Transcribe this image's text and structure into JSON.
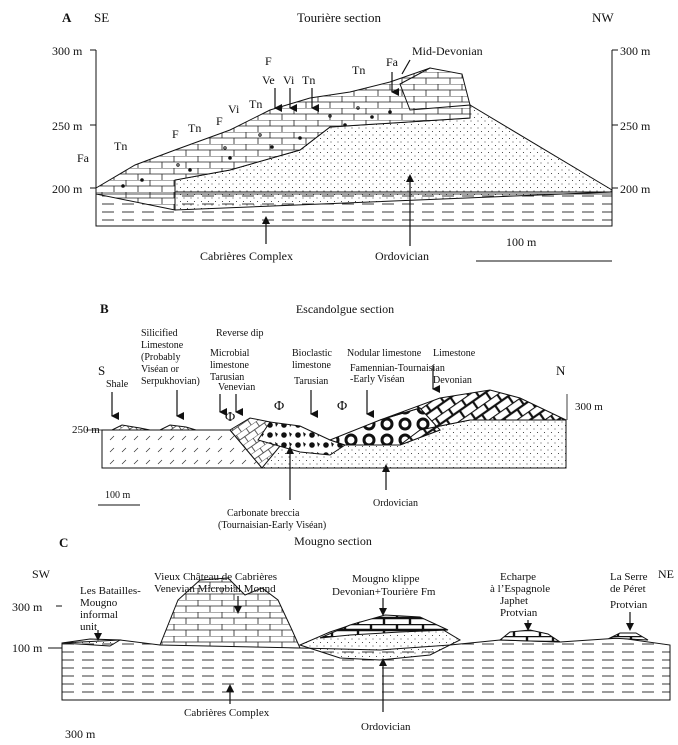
{
  "panelA": {
    "letter": "A",
    "title": "Tourière section",
    "left_dir": "SE",
    "right_dir": "NW",
    "elev_left": [
      "300 m",
      "250 m",
      "200 m"
    ],
    "elev_right": [
      "300 m",
      "250 m",
      "200 m"
    ],
    "unit_labels": [
      "Fa",
      "Tn",
      "F",
      "Tn",
      "F",
      "Vi",
      "F",
      "Ve",
      "Vi",
      "Tn",
      "Tn",
      "Tn",
      "Fa"
    ],
    "mid_devonian": "Mid-Devonian",
    "cabrieres": "Cabrières Complex",
    "ordovician": "Ordovician",
    "scale": "100 m"
  },
  "panelB": {
    "letter": "B",
    "title": "Escandolgue section",
    "left_dir": "S",
    "right_dir": "N",
    "elev_left": "250 m",
    "elev_right": "300 m",
    "shale": "Shale",
    "silicified": [
      "Silicified",
      "Limestone",
      "(Probably",
      "Viséan or",
      "Serpukhovian)"
    ],
    "reverse_dip": "Reverse dip",
    "microbial": [
      "Microbial",
      "limestone"
    ],
    "tarusian1": "Tarusian",
    "venevian": "Venevian",
    "bioclastic": [
      "Bioclastic",
      "limestone"
    ],
    "tarusian2": "Tarusian",
    "nodular": "Nodular limestone",
    "famennian": [
      "Famennian-Tournaisian",
      "-Early Viséan"
    ],
    "limestone": "Limestone",
    "devonian": "Devonian",
    "phi": "Φ",
    "breccia": [
      "Carbonate breccia",
      "(Tournaisian-Early Viséan)"
    ],
    "ordovician": "Ordovician",
    "scale": "100 m"
  },
  "panelC": {
    "letter": "C",
    "title": "Mougno section",
    "left_dir": "SW",
    "right_dir": "NE",
    "elev": [
      "300 m",
      "100 m"
    ],
    "batailles": [
      "Les Batailles-",
      "Mougno",
      "informal",
      "unit"
    ],
    "vieux": [
      "Vieux Château de Cabrières",
      "Venevian Microbial Mound"
    ],
    "klippe": [
      "Mougno klippe",
      "Devonian+Tourière Fm"
    ],
    "echarpe": [
      "Echarpe",
      "à l’Espagnole",
      "Japhet",
      "Protvian"
    ],
    "serre": [
      "La Serre",
      "de Péret",
      "Protvian"
    ],
    "cabrieres": "Cabrières Complex",
    "ordovician": "Ordovician",
    "scale": "300 m"
  }
}
